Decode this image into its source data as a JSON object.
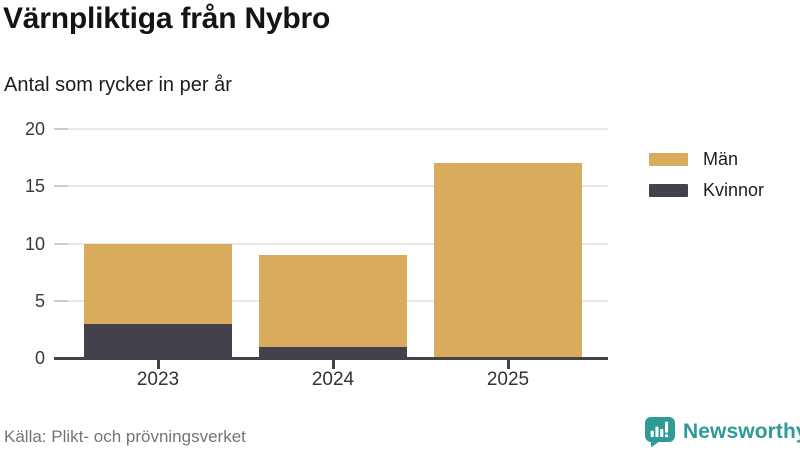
{
  "header": {
    "title": "Värnpliktiga från Nybro",
    "subtitle": "Antal som rycker in per år"
  },
  "chart_data": {
    "type": "bar",
    "stacked": true,
    "title": "Värnpliktiga från Nybro",
    "subtitle": "Antal som rycker in per år",
    "categories": [
      "2023",
      "2024",
      "2025"
    ],
    "series": [
      {
        "name": "Män",
        "values": [
          7,
          8,
          17
        ],
        "color": "#D9AB5C"
      },
      {
        "name": "Kvinnor",
        "values": [
          3,
          1,
          0
        ],
        "color": "#44414C"
      }
    ],
    "totals": [
      10,
      9,
      17
    ],
    "xlabel": "",
    "ylabel": "",
    "ylim": [
      0,
      20
    ],
    "yticks": [
      0,
      5,
      10,
      15,
      20
    ],
    "grid": true,
    "legend_position": "right",
    "stack_order_bottom_to_top": [
      "Kvinnor",
      "Män"
    ]
  },
  "footer": {
    "source": "Källa: Plikt- och prövningsverket",
    "brand": "Newsworthy"
  },
  "colors": {
    "men": "#D9AB5C",
    "women": "#44414C",
    "axis": "#44414C",
    "gridline": "#e8e8e8",
    "brand_teal": "#2E9B96",
    "source_gray": "#757575"
  },
  "icons": {
    "brand": "newsworthy-speech-bubble-with-bar-chart-and-exclamation"
  }
}
